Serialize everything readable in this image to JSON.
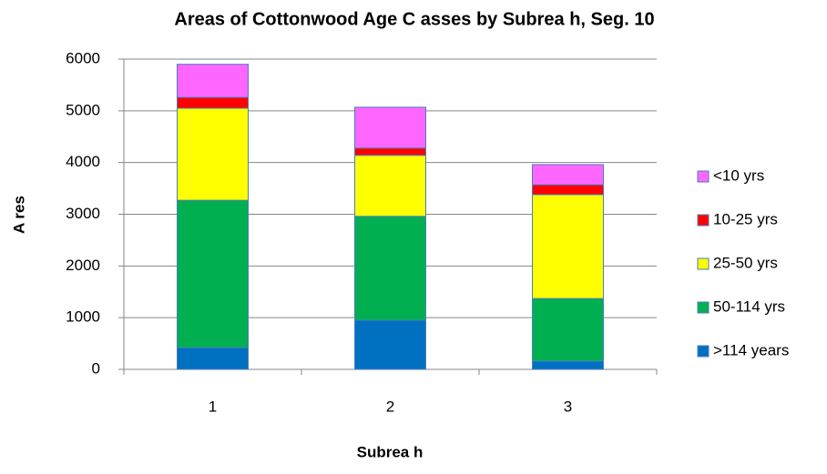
{
  "chart_data": {
    "type": "bar",
    "stacked": true,
    "title": "Areas of Cottonwood Age C asses by Subrea h, Seg. 10",
    "x_label": "Subrea h",
    "y_label": "A res",
    "categories": [
      "1",
      "2",
      "3"
    ],
    "series": [
      {
        "name": ">114 years",
        "color": "#0070c0",
        "values": [
          420,
          950,
          160
        ]
      },
      {
        "name": "50-114 yrs",
        "color": "#00b050",
        "values": [
          2850,
          2010,
          1210
        ]
      },
      {
        "name": "25-50 yrs",
        "color": "#ffff00",
        "values": [
          1780,
          1180,
          2010
        ]
      },
      {
        "name": "10-25 yrs",
        "color": "#ff0000",
        "values": [
          210,
          140,
          190
        ]
      },
      {
        "name": "<10 yrs",
        "color": "#ff66ff",
        "values": [
          640,
          790,
          390
        ]
      }
    ],
    "ylim": [
      0,
      6000
    ],
    "yticks": [
      0,
      1000,
      2000,
      3000,
      4000,
      5000,
      6000
    ],
    "grid": true,
    "legend": "right"
  }
}
